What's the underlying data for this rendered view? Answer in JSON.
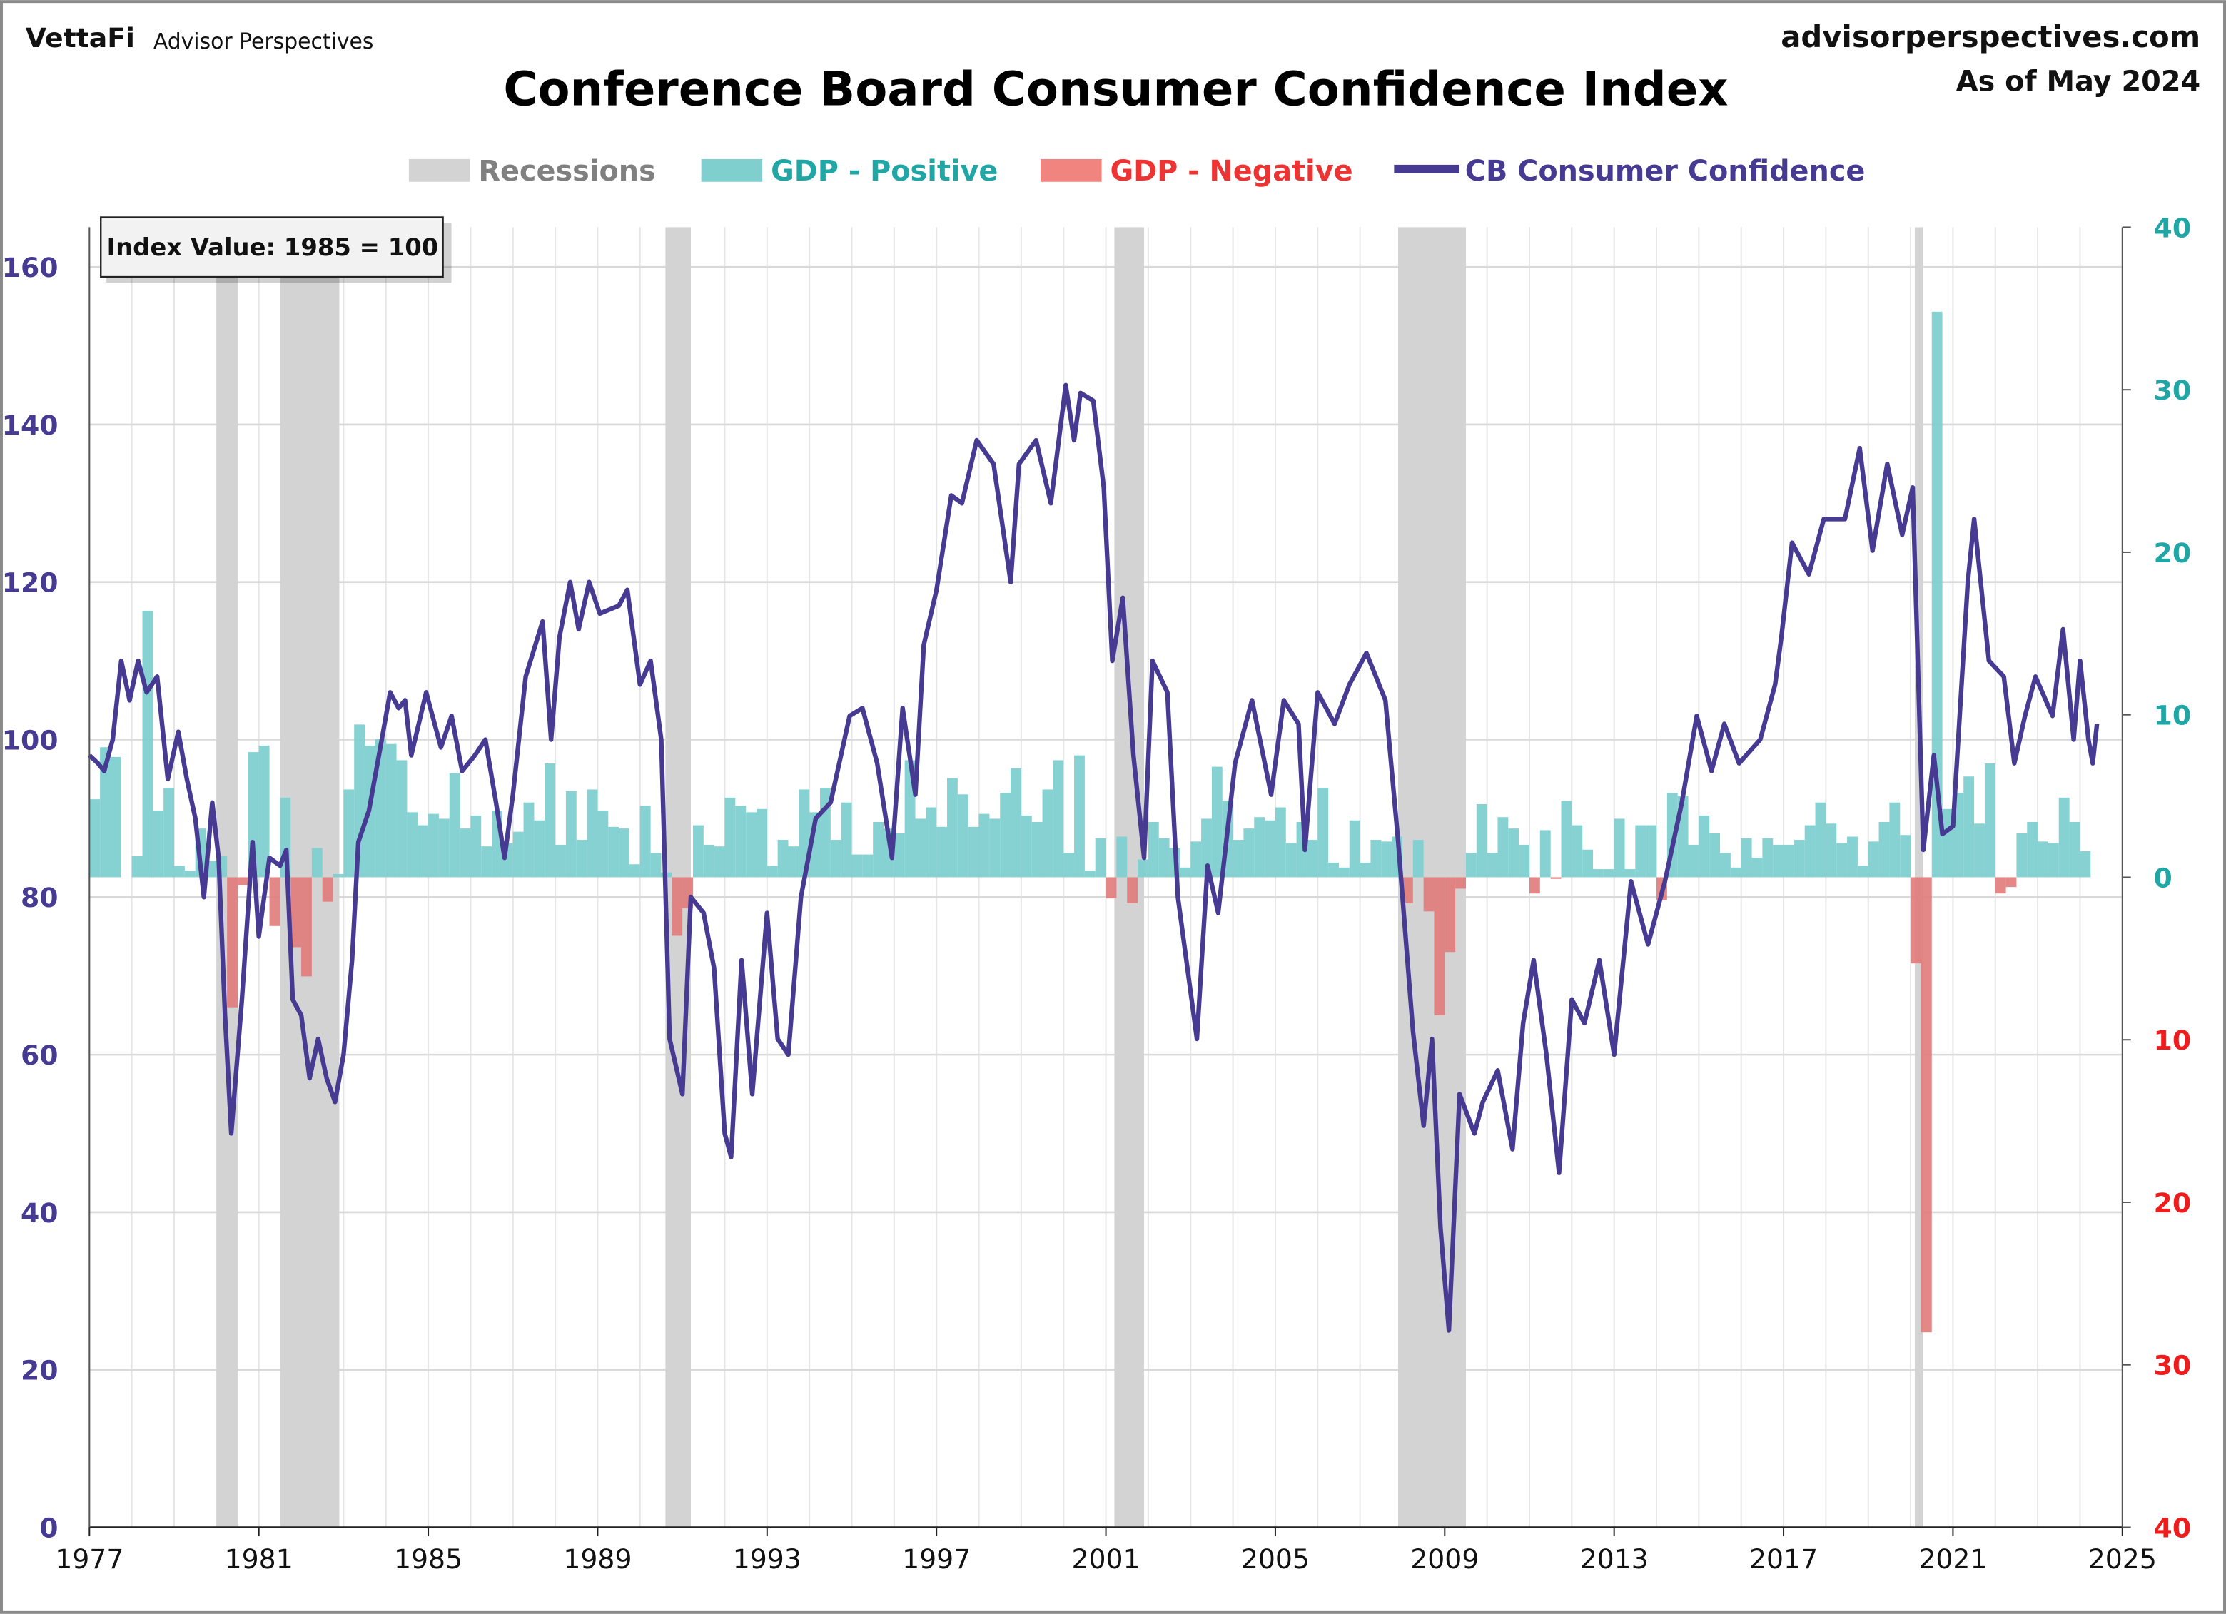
{
  "header": {
    "logo_brand": "VettaFi",
    "logo_sub": "Advisor Perspectives",
    "site": "advisorperspectives.com",
    "as_of": "As of May 2024"
  },
  "colors": {
    "recession": "#d3d3d3",
    "gdp_positive": "#7fcfcf",
    "gdp_negative": "#e07a7a",
    "confidence": "#463a92",
    "left_axis": "#463a92",
    "right_axis_positive": "#21a6a6",
    "right_axis_negative": "#ee1c1c"
  },
  "chart_data": {
    "type": "bar+line",
    "title": "Conference Board Consumer Confidence Index",
    "annotation": "Index Value: 1985 = 100",
    "legend": {
      "placement": "top",
      "items": [
        "Recessions",
        "GDP - Positive",
        "GDP - Negative",
        "CB Consumer Confidence"
      ]
    },
    "grid": true,
    "xlim": [
      1977,
      2025
    ],
    "x_ticks": [
      "1977",
      "1981",
      "1985",
      "1989",
      "1993",
      "1997",
      "2001",
      "2005",
      "2009",
      "2013",
      "2017",
      "2021",
      "2025"
    ],
    "y_left": {
      "lim": [
        0,
        160
      ],
      "ticks": [
        "0",
        "20",
        "40",
        "60",
        "80",
        "100",
        "120",
        "140",
        "160"
      ]
    },
    "y_right": {
      "lim": [
        -40,
        40
      ],
      "ticks": [
        "40",
        "30",
        "20",
        "10",
        "0",
        "10",
        "20",
        "30",
        "40"
      ]
    },
    "recessions": [
      [
        1980.0,
        1980.5
      ],
      [
        1981.5,
        1982.9
      ],
      [
        1990.6,
        1991.2
      ],
      [
        2001.2,
        2001.9
      ],
      [
        2007.9,
        2009.5
      ],
      [
        2020.1,
        2020.3
      ]
    ],
    "gdp_quarterly_start": "1977 Q1",
    "gdp": [
      4.8,
      8.0,
      7.4,
      0.0,
      1.3,
      16.4,
      4.1,
      5.5,
      0.7,
      0.4,
      3.0,
      1.0,
      1.3,
      -8.0,
      -0.5,
      7.7,
      8.1,
      -3.0,
      4.9,
      -4.3,
      -6.1,
      1.8,
      -1.5,
      0.2,
      5.4,
      9.4,
      8.1,
      8.5,
      8.2,
      7.2,
      4.0,
      3.2,
      3.9,
      3.6,
      6.4,
      3.0,
      3.8,
      1.9,
      4.1,
      2.1,
      2.8,
      4.6,
      3.5,
      7.0,
      2.0,
      5.3,
      2.3,
      5.4,
      4.1,
      3.1,
      3.0,
      0.8,
      4.4,
      1.5,
      0.3,
      -3.6,
      -1.9,
      3.2,
      2.0,
      1.9,
      4.9,
      4.4,
      4.0,
      4.2,
      0.7,
      2.3,
      1.9,
      5.4,
      4.0,
      5.5,
      2.3,
      4.6,
      1.4,
      1.4,
      3.4,
      3.0,
      2.7,
      7.2,
      3.6,
      4.3,
      3.1,
      6.1,
      5.1,
      3.1,
      3.9,
      3.6,
      5.2,
      6.7,
      3.8,
      3.4,
      5.4,
      7.2,
      1.5,
      7.5,
      0.4,
      2.4,
      -1.3,
      2.5,
      -1.6,
      1.1,
      3.4,
      2.4,
      1.8,
      0.6,
      2.2,
      3.6,
      6.8,
      4.7,
      2.3,
      3.0,
      3.7,
      3.5,
      4.3,
      2.1,
      3.4,
      2.3,
      5.5,
      0.9,
      0.6,
      3.5,
      0.9,
      2.3,
      2.2,
      2.5,
      -1.6,
      2.3,
      -2.1,
      -8.5,
      -4.6,
      -0.7,
      1.5,
      4.5,
      1.5,
      3.7,
      3.0,
      2.0,
      -1.0,
      2.9,
      -0.1,
      4.7,
      3.2,
      1.7,
      0.5,
      0.5,
      3.6,
      0.5,
      3.2,
      3.2,
      -1.4,
      5.2,
      5.0,
      2.0,
      3.8,
      2.7,
      1.5,
      0.6,
      2.4,
      1.2,
      2.4,
      2.0,
      2.0,
      2.3,
      3.2,
      4.6,
      3.3,
      2.1,
      2.5,
      0.7,
      2.2,
      3.4,
      4.6,
      2.6,
      -5.3,
      -28.0,
      34.8,
      4.2,
      5.2,
      6.2,
      3.3,
      7.0,
      -1.0,
      -0.6,
      2.7,
      3.4,
      2.2,
      2.1,
      4.9,
      3.4,
      1.6
    ],
    "confidence": [
      [
        1977.0,
        98
      ],
      [
        1977.2,
        97
      ],
      [
        1977.35,
        96
      ],
      [
        1977.55,
        100
      ],
      [
        1977.75,
        110
      ],
      [
        1977.95,
        105
      ],
      [
        1978.15,
        110
      ],
      [
        1978.35,
        106
      ],
      [
        1978.6,
        108
      ],
      [
        1978.85,
        95
      ],
      [
        1979.1,
        101
      ],
      [
        1979.3,
        95
      ],
      [
        1979.5,
        90
      ],
      [
        1979.7,
        80
      ],
      [
        1979.9,
        92
      ],
      [
        1980.05,
        85
      ],
      [
        1980.2,
        65
      ],
      [
        1980.35,
        50
      ],
      [
        1980.6,
        67
      ],
      [
        1980.85,
        87
      ],
      [
        1981.0,
        75
      ],
      [
        1981.25,
        85
      ],
      [
        1981.5,
        84
      ],
      [
        1981.65,
        86
      ],
      [
        1981.8,
        67
      ],
      [
        1982.0,
        65
      ],
      [
        1982.2,
        57
      ],
      [
        1982.4,
        62
      ],
      [
        1982.6,
        57
      ],
      [
        1982.8,
        54
      ],
      [
        1983.0,
        60
      ],
      [
        1983.2,
        72
      ],
      [
        1983.35,
        87
      ],
      [
        1983.6,
        91
      ],
      [
        1983.9,
        100
      ],
      [
        1984.1,
        106
      ],
      [
        1984.3,
        104
      ],
      [
        1984.45,
        105
      ],
      [
        1984.6,
        98
      ],
      [
        1984.95,
        106
      ],
      [
        1985.3,
        99
      ],
      [
        1985.55,
        103
      ],
      [
        1985.8,
        96
      ],
      [
        1986.1,
        98
      ],
      [
        1986.35,
        100
      ],
      [
        1986.6,
        92
      ],
      [
        1986.8,
        85
      ],
      [
        1987.0,
        93
      ],
      [
        1987.3,
        108
      ],
      [
        1987.7,
        115
      ],
      [
        1987.9,
        100
      ],
      [
        1988.1,
        113
      ],
      [
        1988.35,
        120
      ],
      [
        1988.55,
        114
      ],
      [
        1988.8,
        120
      ],
      [
        1989.05,
        116
      ],
      [
        1989.5,
        117
      ],
      [
        1989.7,
        119
      ],
      [
        1990.0,
        107
      ],
      [
        1990.25,
        110
      ],
      [
        1990.5,
        100
      ],
      [
        1990.7,
        62
      ],
      [
        1991.0,
        55
      ],
      [
        1991.2,
        80
      ],
      [
        1991.5,
        78
      ],
      [
        1991.75,
        71
      ],
      [
        1992.0,
        50
      ],
      [
        1992.15,
        47
      ],
      [
        1992.4,
        72
      ],
      [
        1992.65,
        55
      ],
      [
        1993.0,
        78
      ],
      [
        1993.25,
        62
      ],
      [
        1993.5,
        60
      ],
      [
        1993.8,
        80
      ],
      [
        1994.15,
        90
      ],
      [
        1994.5,
        92
      ],
      [
        1994.95,
        103
      ],
      [
        1995.25,
        104
      ],
      [
        1995.6,
        97
      ],
      [
        1995.95,
        85
      ],
      [
        1996.2,
        104
      ],
      [
        1996.5,
        93
      ],
      [
        1996.7,
        112
      ],
      [
        1997.0,
        119
      ],
      [
        1997.35,
        131
      ],
      [
        1997.6,
        130
      ],
      [
        1997.95,
        138
      ],
      [
        1998.35,
        135
      ],
      [
        1998.75,
        120
      ],
      [
        1998.95,
        135
      ],
      [
        1999.35,
        138
      ],
      [
        1999.7,
        130
      ],
      [
        2000.05,
        145
      ],
      [
        2000.25,
        138
      ],
      [
        2000.4,
        144
      ],
      [
        2000.7,
        143
      ],
      [
        2000.95,
        132
      ],
      [
        2001.15,
        110
      ],
      [
        2001.4,
        118
      ],
      [
        2001.65,
        98
      ],
      [
        2001.9,
        85
      ],
      [
        2002.1,
        110
      ],
      [
        2002.45,
        106
      ],
      [
        2002.7,
        80
      ],
      [
        2003.15,
        62
      ],
      [
        2003.4,
        84
      ],
      [
        2003.65,
        78
      ],
      [
        2004.05,
        97
      ],
      [
        2004.45,
        105
      ],
      [
        2004.9,
        93
      ],
      [
        2005.2,
        105
      ],
      [
        2005.55,
        102
      ],
      [
        2005.7,
        86
      ],
      [
        2006.0,
        106
      ],
      [
        2006.4,
        102
      ],
      [
        2006.75,
        107
      ],
      [
        2007.15,
        111
      ],
      [
        2007.6,
        105
      ],
      [
        2007.9,
        87
      ],
      [
        2008.25,
        63
      ],
      [
        2008.5,
        51
      ],
      [
        2008.7,
        62
      ],
      [
        2008.9,
        38
      ],
      [
        2009.1,
        25
      ],
      [
        2009.35,
        55
      ],
      [
        2009.7,
        50
      ],
      [
        2009.9,
        54
      ],
      [
        2010.25,
        58
      ],
      [
        2010.6,
        48
      ],
      [
        2010.85,
        64
      ],
      [
        2011.1,
        72
      ],
      [
        2011.4,
        60
      ],
      [
        2011.7,
        45
      ],
      [
        2012.0,
        67
      ],
      [
        2012.3,
        64
      ],
      [
        2012.65,
        72
      ],
      [
        2013.0,
        60
      ],
      [
        2013.4,
        82
      ],
      [
        2013.8,
        74
      ],
      [
        2014.2,
        82
      ],
      [
        2014.6,
        92
      ],
      [
        2014.95,
        103
      ],
      [
        2015.3,
        96
      ],
      [
        2015.6,
        102
      ],
      [
        2015.95,
        97
      ],
      [
        2016.45,
        100
      ],
      [
        2016.8,
        107
      ],
      [
        2016.95,
        113
      ],
      [
        2017.2,
        125
      ],
      [
        2017.6,
        121
      ],
      [
        2017.95,
        128
      ],
      [
        2018.45,
        128
      ],
      [
        2018.8,
        137
      ],
      [
        2019.1,
        124
      ],
      [
        2019.45,
        135
      ],
      [
        2019.8,
        126
      ],
      [
        2020.05,
        132
      ],
      [
        2020.3,
        86
      ],
      [
        2020.55,
        98
      ],
      [
        2020.75,
        88
      ],
      [
        2021.0,
        89
      ],
      [
        2021.35,
        120
      ],
      [
        2021.5,
        128
      ],
      [
        2021.85,
        110
      ],
      [
        2022.2,
        108
      ],
      [
        2022.45,
        97
      ],
      [
        2022.7,
        103
      ],
      [
        2022.95,
        108
      ],
      [
        2023.35,
        103
      ],
      [
        2023.6,
        114
      ],
      [
        2023.85,
        100
      ],
      [
        2024.0,
        110
      ],
      [
        2024.2,
        100
      ],
      [
        2024.3,
        97
      ],
      [
        2024.4,
        102
      ]
    ]
  }
}
